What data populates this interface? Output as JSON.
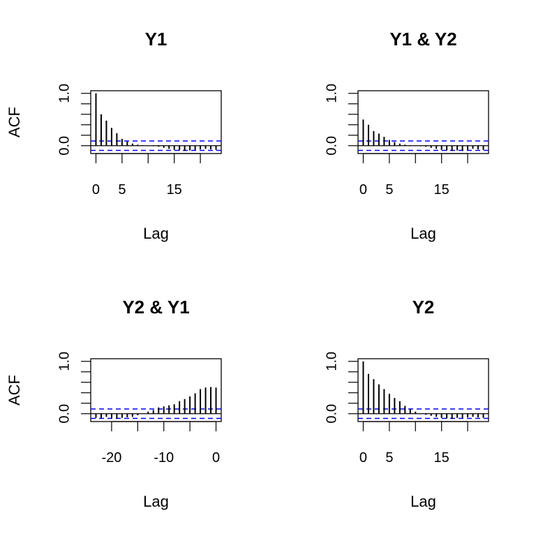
{
  "chart_data": [
    {
      "type": "bar",
      "title": "Y1",
      "xlabel": "Lag",
      "ylabel": "ACF",
      "xlim": [
        -1,
        24
      ],
      "ylim": [
        -0.15,
        1.05
      ],
      "x_ticks": [
        0,
        5,
        15
      ],
      "y_ticks": [
        "0.0",
        "1.0"
      ],
      "ci": 0.09,
      "lags": [
        0,
        1,
        2,
        3,
        4,
        5,
        6,
        7,
        8,
        9,
        10,
        11,
        12,
        13,
        14,
        15,
        16,
        17,
        18,
        19,
        20,
        21,
        22,
        23
      ],
      "values": [
        1.0,
        0.6,
        0.48,
        0.34,
        0.24,
        0.13,
        0.08,
        0.04,
        0.02,
        0.01,
        0.0,
        -0.01,
        -0.02,
        -0.04,
        -0.06,
        -0.08,
        -0.09,
        -0.1,
        -0.09,
        -0.08,
        -0.07,
        -0.06,
        -0.07,
        -0.08
      ]
    },
    {
      "type": "bar",
      "title": "Y1 & Y2",
      "xlabel": "Lag",
      "ylabel": "",
      "xlim": [
        -1,
        24
      ],
      "ylim": [
        -0.15,
        1.05
      ],
      "x_ticks": [
        0,
        5,
        15
      ],
      "y_ticks": [
        "0.0",
        "1.0"
      ],
      "ci": 0.09,
      "lags": [
        0,
        1,
        2,
        3,
        4,
        5,
        6,
        7,
        8,
        9,
        10,
        11,
        12,
        13,
        14,
        15,
        16,
        17,
        18,
        19,
        20,
        21,
        22,
        23
      ],
      "values": [
        0.5,
        0.4,
        0.28,
        0.23,
        0.17,
        0.11,
        0.07,
        0.04,
        0.02,
        0.01,
        0.0,
        -0.01,
        -0.02,
        -0.04,
        -0.06,
        -0.08,
        -0.09,
        -0.1,
        -0.09,
        -0.1,
        -0.08,
        -0.06,
        -0.07,
        -0.08
      ]
    },
    {
      "type": "bar",
      "title": "Y2 & Y1",
      "xlabel": "Lag",
      "ylabel": "ACF",
      "xlim": [
        -24,
        1
      ],
      "ylim": [
        -0.15,
        1.05
      ],
      "x_ticks": [
        -20,
        -10,
        0
      ],
      "y_ticks": [
        "0.0",
        "1.0"
      ],
      "ci": 0.09,
      "lags": [
        -23,
        -22,
        -21,
        -20,
        -19,
        -18,
        -17,
        -16,
        -15,
        -14,
        -13,
        -12,
        -11,
        -10,
        -9,
        -8,
        -7,
        -6,
        -5,
        -4,
        -3,
        -2,
        -1,
        0
      ],
      "values": [
        -0.08,
        -0.08,
        -0.06,
        -0.08,
        -0.09,
        -0.08,
        -0.07,
        -0.06,
        -0.03,
        0.0,
        0.04,
        0.07,
        0.12,
        0.14,
        0.16,
        0.18,
        0.24,
        0.28,
        0.33,
        0.39,
        0.47,
        0.5,
        0.51,
        0.5
      ]
    },
    {
      "type": "bar",
      "title": "Y2",
      "xlabel": "Lag",
      "ylabel": "",
      "xlim": [
        -1,
        24
      ],
      "ylim": [
        -0.15,
        1.05
      ],
      "x_ticks": [
        0,
        5,
        15
      ],
      "y_ticks": [
        "0.0",
        "1.0"
      ],
      "ci": 0.09,
      "lags": [
        0,
        1,
        2,
        3,
        4,
        5,
        6,
        7,
        8,
        9,
        10,
        11,
        12,
        13,
        14,
        15,
        16,
        17,
        18,
        19,
        20,
        21,
        22,
        23
      ],
      "values": [
        1.0,
        0.76,
        0.66,
        0.56,
        0.47,
        0.38,
        0.3,
        0.24,
        0.15,
        0.09,
        0.04,
        0.0,
        -0.02,
        -0.04,
        -0.06,
        -0.08,
        -0.09,
        -0.1,
        -0.08,
        -0.08,
        -0.07,
        -0.06,
        -0.07,
        -0.08
      ]
    }
  ],
  "colors": {
    "bars": "#000000",
    "ci_line": "#0000ff",
    "axis": "#000000"
  }
}
